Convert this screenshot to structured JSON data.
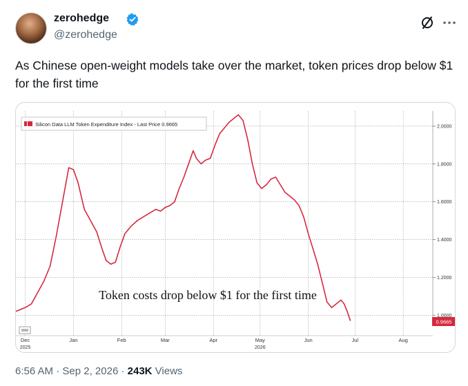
{
  "author": {
    "display_name": "zerohedge",
    "handle": "@zerohedge"
  },
  "post": {
    "text": "As Chinese open-weight models take over the market, token prices drop below $1 for the first time",
    "time": "6:56 AM",
    "date": "Sep 2, 2026",
    "views_count": "243K",
    "views_label": "Views"
  },
  "icons": {
    "verified": "verified-badge-icon",
    "grok": "grok-icon",
    "more": "more-options-icon",
    "legend_toggle": "legend-toggle-icon"
  },
  "colors": {
    "series": "#d6283e",
    "verified": "#1d9bf0",
    "muted": "#536471"
  },
  "chart_data": {
    "type": "line",
    "legend": "Silicon Data LLM Token Expenditure Index - Last Price 0.9665",
    "annotation": "Token costs drop below $1 for the first time",
    "last_price_label": "0.9665",
    "last_price": 0.9665,
    "grid": true,
    "ylim": [
      0.95,
      2.08
    ],
    "y_ticks": [
      {
        "value": 1.0,
        "label": "1.0000"
      },
      {
        "value": 1.2,
        "label": "1.2000"
      },
      {
        "value": 1.4,
        "label": "1.4000"
      },
      {
        "value": 1.6,
        "label": "1.6000"
      },
      {
        "value": 1.8,
        "label": "1.8000"
      },
      {
        "value": 2.0,
        "label": "2.0000"
      }
    ],
    "x_ticks": [
      {
        "t": 2,
        "label": "Dec",
        "sub": "2025"
      },
      {
        "t": 33,
        "label": "Jan",
        "sub": ""
      },
      {
        "t": 64,
        "label": "Feb",
        "sub": ""
      },
      {
        "t": 92,
        "label": "Mar",
        "sub": ""
      },
      {
        "t": 123,
        "label": "Apr",
        "sub": ""
      },
      {
        "t": 153,
        "label": "May",
        "sub": "2026"
      },
      {
        "t": 184,
        "label": "Jun",
        "sub": ""
      },
      {
        "t": 214,
        "label": "Jul",
        "sub": ""
      },
      {
        "t": 245,
        "label": "Aug",
        "sub": ""
      }
    ],
    "x_range": [
      -4,
      264
    ],
    "series": [
      {
        "points": [
          [
            -4,
            1.02
          ],
          [
            2,
            1.04
          ],
          [
            6,
            1.06
          ],
          [
            10,
            1.12
          ],
          [
            14,
            1.18
          ],
          [
            18,
            1.26
          ],
          [
            22,
            1.42
          ],
          [
            26,
            1.6
          ],
          [
            30,
            1.78
          ],
          [
            33,
            1.77
          ],
          [
            36,
            1.7
          ],
          [
            40,
            1.56
          ],
          [
            44,
            1.5
          ],
          [
            48,
            1.44
          ],
          [
            51,
            1.36
          ],
          [
            54,
            1.29
          ],
          [
            57,
            1.27
          ],
          [
            60,
            1.28
          ],
          [
            63,
            1.36
          ],
          [
            66,
            1.43
          ],
          [
            70,
            1.47
          ],
          [
            74,
            1.5
          ],
          [
            78,
            1.52
          ],
          [
            82,
            1.54
          ],
          [
            86,
            1.56
          ],
          [
            89,
            1.55
          ],
          [
            92,
            1.57
          ],
          [
            95,
            1.58
          ],
          [
            98,
            1.6
          ],
          [
            101,
            1.67
          ],
          [
            104,
            1.73
          ],
          [
            107,
            1.8
          ],
          [
            110,
            1.87
          ],
          [
            112,
            1.83
          ],
          [
            115,
            1.8
          ],
          [
            118,
            1.82
          ],
          [
            121,
            1.83
          ],
          [
            124,
            1.9
          ],
          [
            127,
            1.96
          ],
          [
            130,
            1.99
          ],
          [
            133,
            2.02
          ],
          [
            136,
            2.04
          ],
          [
            139,
            2.06
          ],
          [
            142,
            2.03
          ],
          [
            145,
            1.93
          ],
          [
            148,
            1.8
          ],
          [
            151,
            1.7
          ],
          [
            154,
            1.67
          ],
          [
            157,
            1.69
          ],
          [
            160,
            1.72
          ],
          [
            163,
            1.73
          ],
          [
            166,
            1.69
          ],
          [
            169,
            1.65
          ],
          [
            172,
            1.63
          ],
          [
            175,
            1.61
          ],
          [
            178,
            1.58
          ],
          [
            181,
            1.52
          ],
          [
            184,
            1.43
          ],
          [
            187,
            1.35
          ],
          [
            190,
            1.27
          ],
          [
            193,
            1.17
          ],
          [
            196,
            1.07
          ],
          [
            199,
            1.04
          ],
          [
            202,
            1.06
          ],
          [
            205,
            1.08
          ],
          [
            207,
            1.06
          ],
          [
            209,
            1.02
          ],
          [
            211,
            0.97
          ]
        ]
      }
    ]
  }
}
